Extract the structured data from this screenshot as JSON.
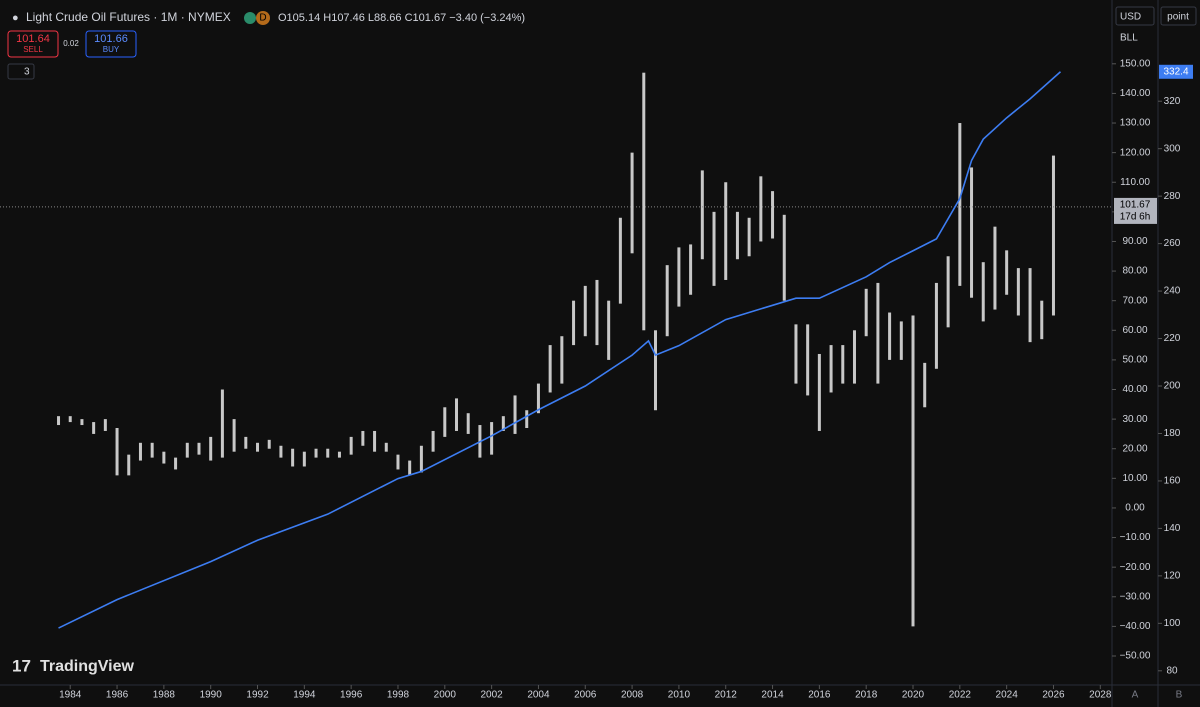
{
  "header": {
    "symbol": "Light Crude Oil Futures · 1M · NYMEX",
    "interval_badge": "D",
    "ohlc": "O105.14 H107.46 L88.66 C101.67 −3.40 (−3.24%)",
    "sell_price": "101.64",
    "sell_label": "SELL",
    "spread": "0.02",
    "buy_price": "101.66",
    "buy_label": "BUY",
    "indicators_count": "3",
    "currency": "USD",
    "unit": "BLL",
    "y2_unit": "point",
    "countdown": "17d 6h",
    "brand": "TradingView",
    "auto_button": "A",
    "scale_button": "B"
  },
  "chart_data": {
    "type": "ohlc",
    "color": "#c8c8c8",
    "x": [
      1983.5,
      1984.0,
      1984.5,
      1985.0,
      1985.5,
      1986.0,
      1986.5,
      1987.0,
      1987.5,
      1988.0,
      1988.5,
      1989.0,
      1989.5,
      1990.0,
      1990.5,
      1991.0,
      1991.5,
      1992.0,
      1992.5,
      1993.0,
      1993.5,
      1994.0,
      1994.5,
      1995.0,
      1995.5,
      1996.0,
      1996.5,
      1997.0,
      1997.5,
      1998.0,
      1998.5,
      1999.0,
      1999.5,
      2000.0,
      2000.5,
      2001.0,
      2001.5,
      2002.0,
      2002.5,
      2003.0,
      2003.5,
      2004.0,
      2004.5,
      2005.0,
      2005.5,
      2006.0,
      2006.5,
      2007.0,
      2007.5,
      2008.0,
      2008.5,
      2009.0,
      2009.5,
      2010.0,
      2010.5,
      2011.0,
      2011.5,
      2012.0,
      2012.5,
      2013.0,
      2013.5,
      2014.0,
      2014.5,
      2015.0,
      2015.5,
      2016.0,
      2016.5,
      2017.0,
      2017.5,
      2018.0,
      2018.5,
      2019.0,
      2019.5,
      2020.0,
      2020.5,
      2021.0,
      2021.5,
      2022.0,
      2022.5,
      2023.0,
      2023.5,
      2024.0,
      2024.5,
      2025.0,
      2025.5,
      2026.0
    ],
    "high": [
      31,
      31,
      30,
      29,
      30,
      27,
      18,
      22,
      22,
      19,
      17,
      22,
      22,
      24,
      40,
      30,
      24,
      22,
      23,
      21,
      20,
      19,
      20,
      20,
      19,
      24,
      26,
      26,
      22,
      18,
      16,
      21,
      26,
      34,
      37,
      32,
      28,
      29,
      31,
      38,
      33,
      42,
      55,
      58,
      70,
      75,
      77,
      70,
      98,
      120,
      147,
      60,
      82,
      88,
      89,
      114,
      100,
      110,
      100,
      98,
      112,
      107,
      99,
      62,
      62,
      52,
      55,
      55,
      60,
      74,
      76,
      66,
      63,
      65,
      49,
      76,
      85,
      130,
      115,
      83,
      95,
      87,
      81,
      81,
      70,
      119
    ],
    "low": [
      28,
      29,
      28,
      25,
      26,
      11,
      11,
      16,
      17,
      15,
      13,
      17,
      18,
      16,
      17,
      19,
      20,
      19,
      20,
      17,
      14,
      14,
      17,
      17,
      17,
      18,
      21,
      19,
      19,
      13,
      11,
      12,
      19,
      24,
      26,
      25,
      17,
      18,
      26,
      25,
      27,
      32,
      39,
      42,
      55,
      58,
      55,
      50,
      69,
      86,
      60,
      33,
      58,
      68,
      72,
      84,
      75,
      77,
      84,
      85,
      90,
      91,
      70,
      42,
      38,
      26,
      39,
      42,
      42,
      58,
      42,
      50,
      50,
      -40,
      34,
      47,
      61,
      75,
      71,
      63,
      67,
      72,
      65,
      56,
      57,
      65
    ],
    "last_price": {
      "value": 101.67,
      "label": "101.67"
    },
    "xlim": [
      1981,
      2028.5
    ],
    "ylim": [
      -55,
      155
    ],
    "xticks": [
      1984,
      1986,
      1988,
      1990,
      1992,
      1994,
      1996,
      1998,
      2000,
      2002,
      2004,
      2006,
      2008,
      2010,
      2012,
      2014,
      2016,
      2018,
      2020,
      2022,
      2024,
      2026,
      2028
    ],
    "yticks": [
      {
        "value": 150,
        "label": "150.00"
      },
      {
        "value": 140,
        "label": "140.00"
      },
      {
        "value": 130,
        "label": "130.00"
      },
      {
        "value": 120,
        "label": "120.00"
      },
      {
        "value": 110,
        "label": "110.00"
      },
      {
        "value": 100,
        "label": "100.00"
      },
      {
        "value": 90,
        "label": "90.00"
      },
      {
        "value": 80,
        "label": "80.00"
      },
      {
        "value": 70,
        "label": "70.00"
      },
      {
        "value": 60,
        "label": "60.00"
      },
      {
        "value": 50,
        "label": "50.00"
      },
      {
        "value": 40,
        "label": "40.00"
      },
      {
        "value": 30,
        "label": "30.00"
      },
      {
        "value": 20,
        "label": "20.00"
      },
      {
        "value": 10,
        "label": "10.00"
      },
      {
        "value": 0,
        "label": "0.00"
      },
      {
        "value": -10,
        "label": "−10.00"
      },
      {
        "value": -20,
        "label": "−20.00"
      },
      {
        "value": -30,
        "label": "−30.00"
      },
      {
        "value": -40,
        "label": "−40.00"
      },
      {
        "value": -50,
        "label": "−50.00"
      }
    ],
    "y2lim": [
      80,
      342
    ],
    "y2ticks": [
      80,
      100,
      120,
      140,
      160,
      180,
      200,
      220,
      240,
      260,
      280,
      300,
      320
    ],
    "indicator": {
      "axis": "y2",
      "color": "#3d7df2",
      "x": [
        1983.5,
        1986,
        1990,
        1992,
        1995,
        1998,
        1999,
        2002,
        2004,
        2006,
        2008,
        2008.7,
        2009,
        2010,
        2012,
        2014,
        2015,
        2016,
        2018,
        2019,
        2020,
        2021,
        2022,
        2022.5,
        2023,
        2024,
        2025,
        2026.3
      ],
      "values": [
        98,
        110,
        126,
        135,
        146,
        161,
        164,
        179,
        190,
        200,
        213,
        219,
        213,
        217,
        228,
        234,
        237,
        237,
        246,
        252,
        257,
        262,
        279,
        295,
        304,
        313,
        321,
        332.4
      ],
      "last_value": 332.4
    }
  }
}
